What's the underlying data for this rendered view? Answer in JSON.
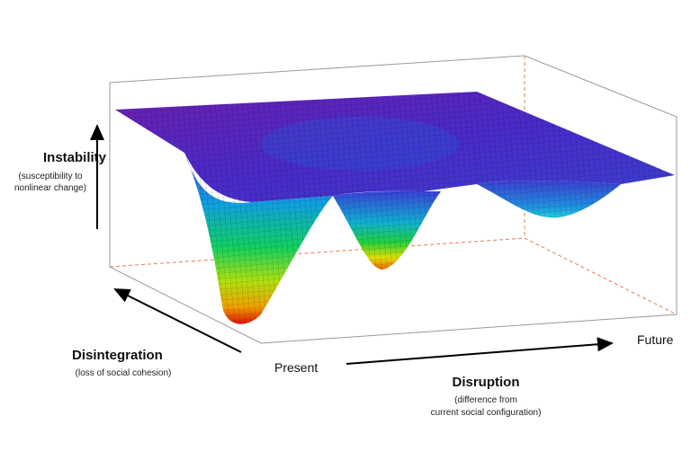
{
  "axes": {
    "vertical": {
      "title": "Instability",
      "subtitle_lines": [
        "(susceptibility to",
        "nonlinear change)"
      ]
    },
    "depth": {
      "title": "Disintegration",
      "subtitle_lines": [
        "(loss of social cohesion)"
      ]
    },
    "horizontal": {
      "start": "Present",
      "end": "Future",
      "title": "Disruption",
      "subtitle_lines": [
        "(difference from",
        "current social configuration)"
      ]
    }
  }
}
